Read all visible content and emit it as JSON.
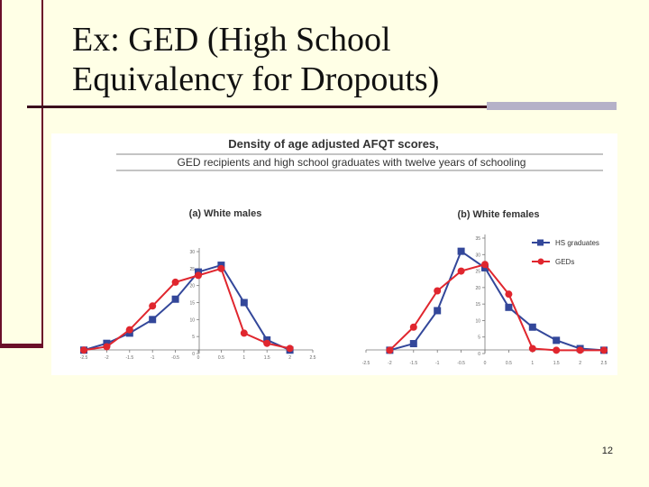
{
  "slide": {
    "title_line1": "Ex: GED (High School",
    "title_line2": "Equivalency for Dropouts)",
    "page_number": "12"
  },
  "colors": {
    "background": "#ffffe6",
    "accent_dark": "#6b0f2a",
    "rule_gray": "#b5b1c8",
    "hs_series": "#33479a",
    "ged_series": "#e0262e"
  },
  "figure": {
    "title_line1": "Density of age adjusted AFQT scores,",
    "title_line2": "GED recipients and high school graduates with twelve years of schooling"
  },
  "chart_data": [
    {
      "type": "line",
      "title": "(a) White males",
      "x": [
        -2.5,
        -2,
        -1.5,
        -1,
        -0.5,
        0,
        0.5,
        1,
        1.5,
        2,
        2.5
      ],
      "x_tick_labels": [
        "-2.5",
        "-2",
        "-1.5",
        "-1",
        "-0.5",
        "0",
        "0.5",
        "1",
        "1.5",
        "2",
        "2.5"
      ],
      "y_tick_labels": [
        "0",
        "5",
        "10",
        "15",
        "20",
        "25",
        "30"
      ],
      "ylim": [
        0,
        30
      ],
      "series": [
        {
          "name": "HS graduates",
          "marker": "square",
          "color": "#33479a",
          "values": [
            1,
            3,
            6,
            10,
            16,
            24,
            26,
            15,
            4,
            1,
            null
          ]
        },
        {
          "name": "GEDs",
          "marker": "circle",
          "color": "#e0262e",
          "values": [
            1,
            2,
            7,
            14,
            21,
            23,
            25,
            6,
            3,
            1.5,
            null
          ]
        }
      ],
      "legend": null
    },
    {
      "type": "line",
      "title": "(b) White females",
      "x": [
        -2.5,
        -2,
        -1.5,
        -1,
        -0.5,
        0,
        0.5,
        1,
        1.5,
        2,
        2.5
      ],
      "x_tick_labels": [
        "-2.5",
        "-2",
        "-1.5",
        "-1",
        "-0.5",
        "0",
        "0.5",
        "1",
        "1.5",
        "2",
        "2.5"
      ],
      "y_tick_labels": [
        "0",
        "5",
        "10",
        "15",
        "20",
        "25",
        "30",
        "35"
      ],
      "ylim": [
        0,
        35
      ],
      "series": [
        {
          "name": "HS graduates",
          "marker": "square",
          "color": "#33479a",
          "values": [
            null,
            1,
            3,
            13,
            31,
            26,
            14,
            8,
            4,
            1.5,
            1
          ]
        },
        {
          "name": "GEDs",
          "marker": "circle",
          "color": "#e0262e",
          "values": [
            null,
            1,
            8,
            19,
            25,
            27,
            18,
            1.5,
            1,
            1,
            1
          ]
        }
      ],
      "legend": "top-right"
    }
  ]
}
